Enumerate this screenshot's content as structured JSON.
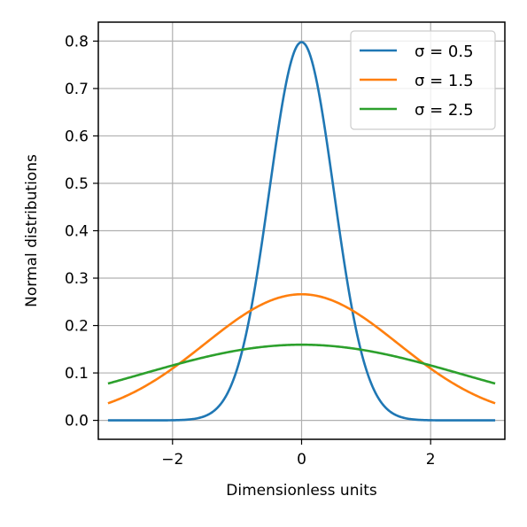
{
  "chart_data": {
    "type": "line",
    "title": "",
    "xlabel": "Dimensionless units",
    "ylabel": "Normal distributions",
    "xlim": [
      -3.15,
      3.15
    ],
    "ylim": [
      -0.04,
      0.84
    ],
    "xticks": [
      {
        "value": -2,
        "label": "−2"
      },
      {
        "value": 0,
        "label": "0"
      },
      {
        "value": 2,
        "label": "2"
      }
    ],
    "yticks": [
      {
        "value": 0.0,
        "label": "0.0"
      },
      {
        "value": 0.1,
        "label": "0.1"
      },
      {
        "value": 0.2,
        "label": "0.2"
      },
      {
        "value": 0.3,
        "label": "0.3"
      },
      {
        "value": 0.4,
        "label": "0.4"
      },
      {
        "value": 0.5,
        "label": "0.5"
      },
      {
        "value": 0.6,
        "label": "0.6"
      },
      {
        "value": 0.7,
        "label": "0.7"
      },
      {
        "value": 0.8,
        "label": "0.8"
      }
    ],
    "grid": true,
    "legend_position": "top-right",
    "x_range": [
      -3,
      3
    ],
    "series": [
      {
        "name": "σ = 0.5",
        "sigma": 0.5,
        "color": "#1f77b4"
      },
      {
        "name": "σ = 1.5",
        "sigma": 1.5,
        "color": "#ff7f0e"
      },
      {
        "name": "σ = 2.5",
        "sigma": 2.5,
        "color": "#2ca02c"
      }
    ]
  }
}
